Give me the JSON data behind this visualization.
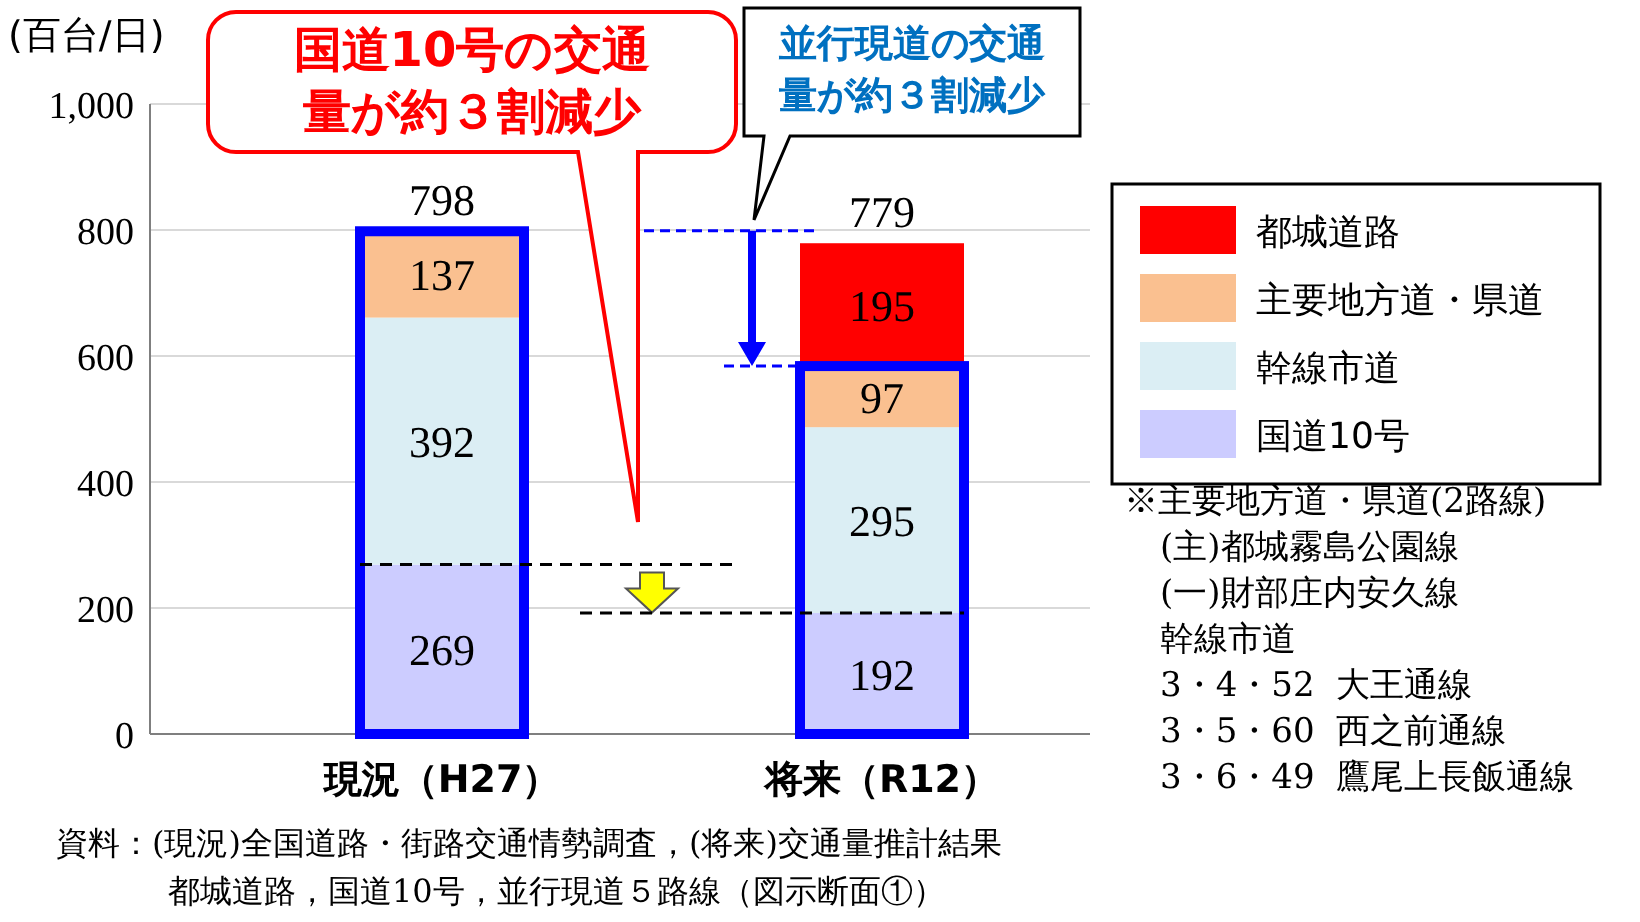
{
  "chart_data": {
    "type": "bar",
    "stacked": true,
    "ylabel": "(百台/日)",
    "categories": [
      "現況（H27）",
      "将来（R12）"
    ],
    "series": [
      {
        "name": "国道10号",
        "color": "#ccccff",
        "values": [
          269,
          192
        ]
      },
      {
        "name": "幹線市道",
        "color": "#dbeef4",
        "values": [
          392,
          295
        ]
      },
      {
        "name": "主要地方道・県道",
        "color": "#fac090",
        "values": [
          137,
          97
        ]
      },
      {
        "name": "都城道路",
        "color": "#ff0000",
        "values": [
          null,
          195
        ]
      }
    ],
    "data_labels": true,
    "totals": [
      "798",
      "779"
    ],
    "ylim": [
      0,
      1000
    ],
    "yticks": [
      0,
      200,
      400,
      600,
      800,
      {
        "value": 1000,
        "label": "1,000"
      }
    ],
    "grid": "y",
    "legend": "right",
    "ref_lines": [
      {
        "axis": "y",
        "value": 269,
        "color": "#000000",
        "line_style": "dashed"
      },
      {
        "axis": "y",
        "value": 192,
        "color": "#000000",
        "line_style": "dashed"
      }
    ],
    "annotations": [
      "国道10号の交通",
      "量が約３割減少",
      "並行現道の交通",
      "量が約３割減少",
      "※主要地方道・県道(2路線)",
      "(主)都城霧島公園線",
      "(一)財部庄内安久線",
      "幹線市道",
      "3・4・52  大王通線",
      "3・5・60  西之前通線",
      "3・6・49  鷹尾上長飯通線",
      "資料：(現況)全国道路・街路交通情勢調査，(将来)交通量推計結果",
      "都城道路，国道10号，並行現道５路線（図示断面①）"
    ]
  }
}
